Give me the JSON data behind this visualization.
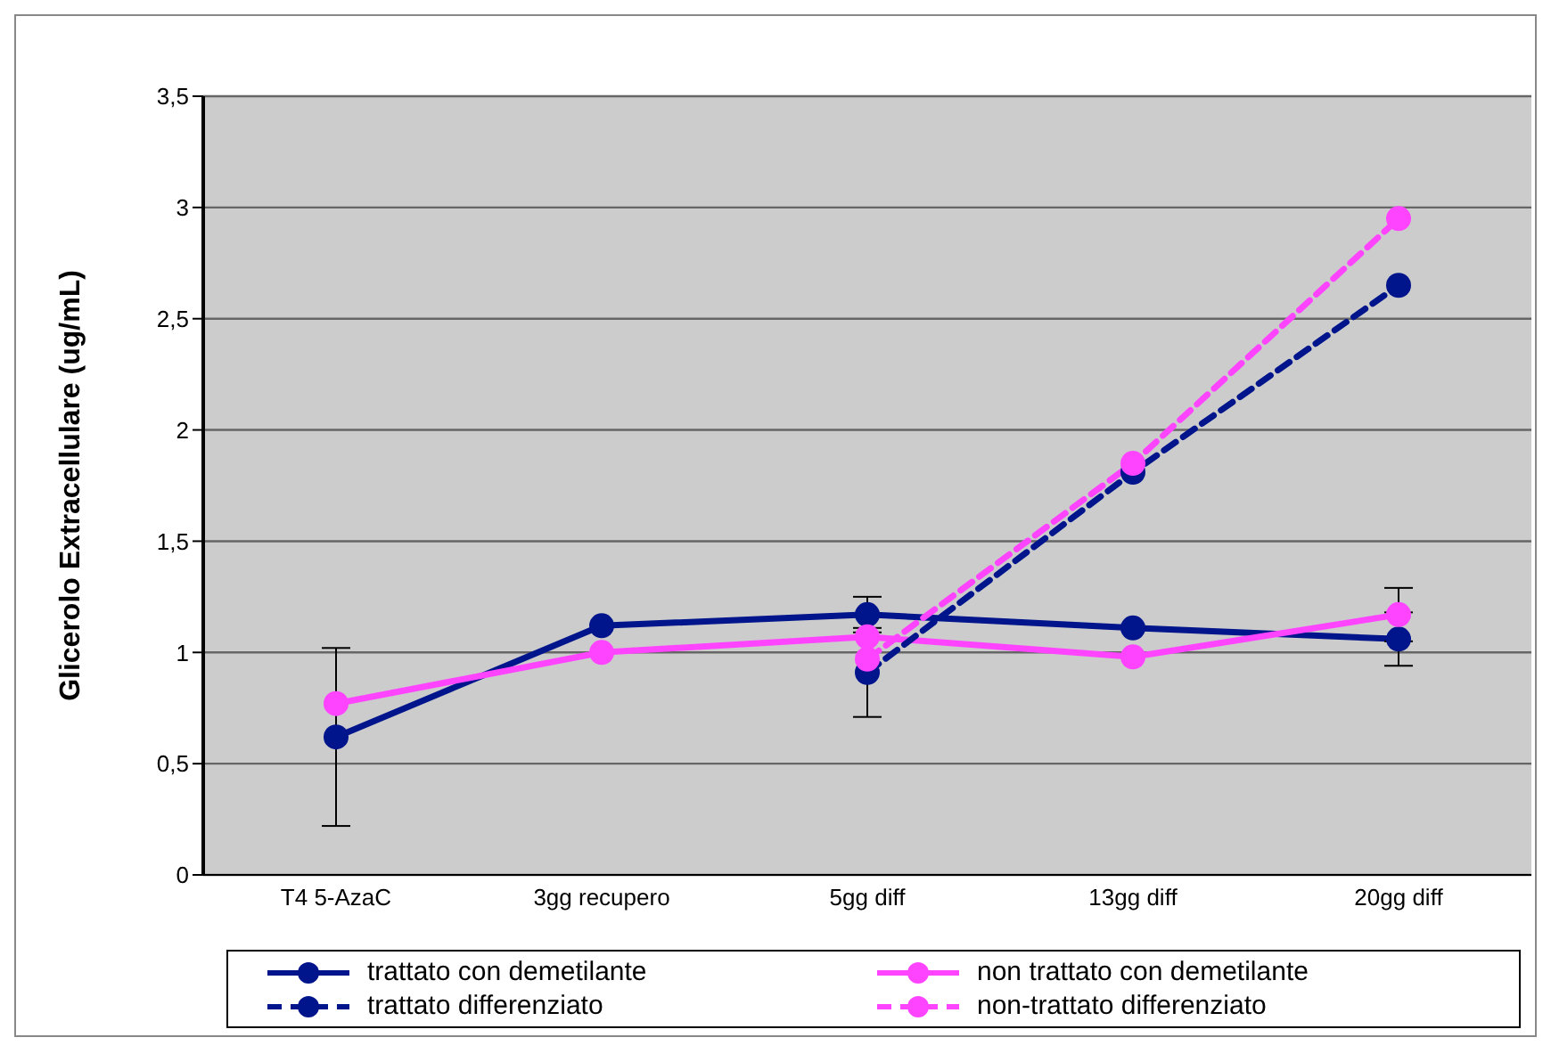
{
  "chart_data": {
    "type": "line",
    "ylabel": "Glicerolo Extracellulare (ug/mL)",
    "categories": [
      "T4 5-AzaC",
      "3gg recupero",
      "5gg diff",
      "13gg diff",
      "20gg diff"
    ],
    "series": [
      {
        "name": "trattato con demetilante",
        "color": "#00148c",
        "line_style": "solid",
        "values": [
          0.62,
          1.12,
          1.17,
          1.11,
          1.06
        ],
        "errors": [
          0.4,
          null,
          0.08,
          null,
          0.12
        ]
      },
      {
        "name": "non trattato con demetilante",
        "color": "#ff44ff",
        "line_style": "solid",
        "values": [
          0.77,
          1.0,
          1.07,
          0.98,
          1.17
        ],
        "errors": [
          null,
          null,
          null,
          null,
          0.12
        ]
      },
      {
        "name": "trattato differenziato",
        "color": "#00148c",
        "line_style": "dashed",
        "values": [
          null,
          null,
          0.91,
          1.81,
          2.65
        ],
        "errors": [
          null,
          null,
          0.2,
          null,
          null
        ]
      },
      {
        "name": "non-trattato differenziato",
        "color": "#ff44ff",
        "line_style": "dashed",
        "values": [
          null,
          null,
          0.97,
          1.85,
          2.95
        ]
      }
    ],
    "ylim": [
      0,
      3.5
    ],
    "yticks": [
      0,
      {
        "value": 0.5,
        "label": "0,5"
      },
      1,
      {
        "value": 1.5,
        "label": "1,5"
      },
      2,
      {
        "value": 2.5,
        "label": "2,5"
      },
      3,
      {
        "value": 3.5,
        "label": "3,5"
      }
    ],
    "grid": "y",
    "legend": "bottom",
    "marker": "circle"
  }
}
